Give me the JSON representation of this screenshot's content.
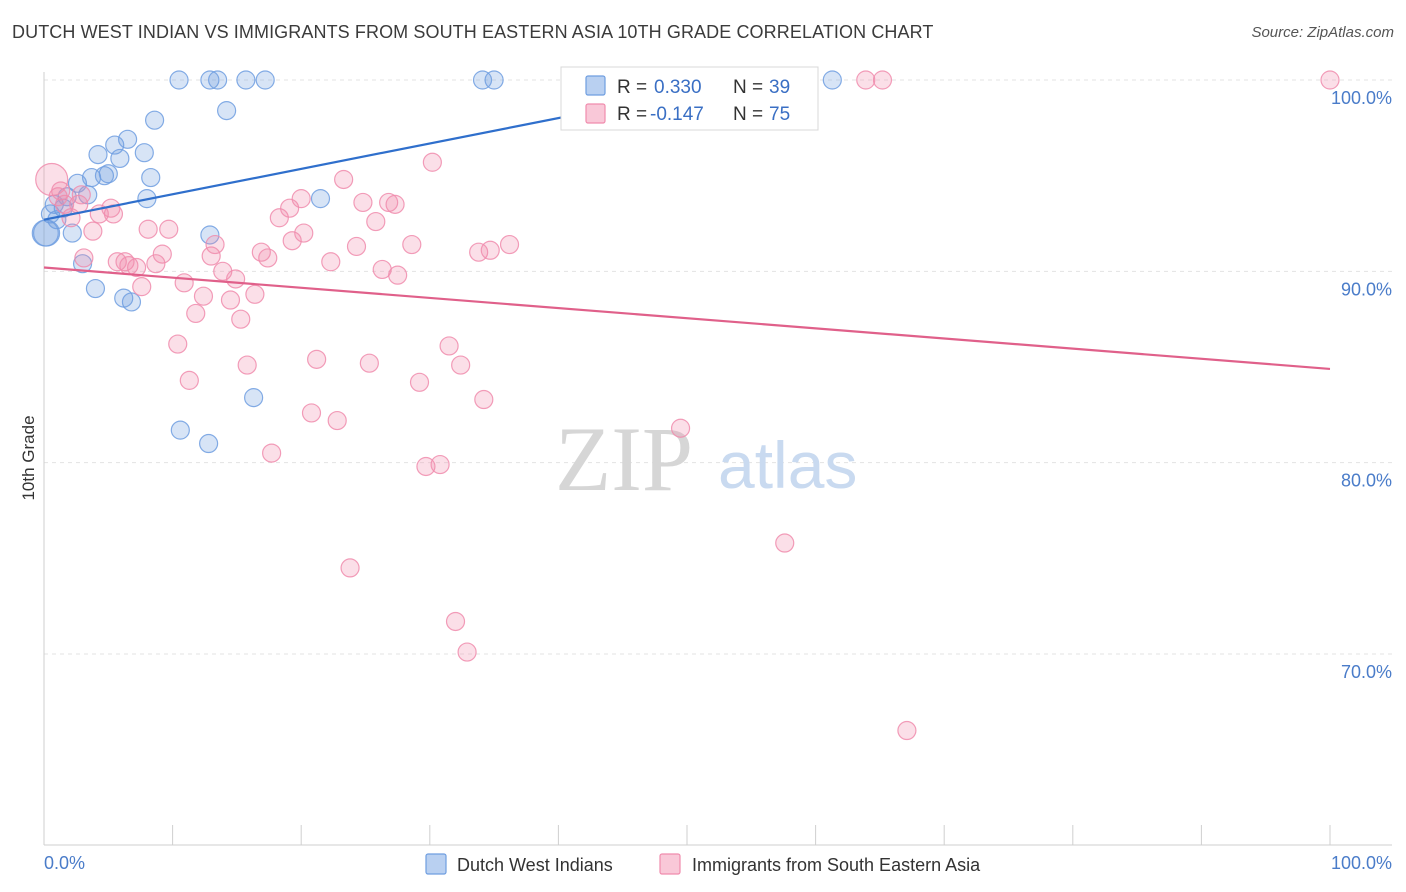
{
  "title": "DUTCH WEST INDIAN VS IMMIGRANTS FROM SOUTH EASTERN ASIA 10TH GRADE CORRELATION CHART",
  "source": "Source: ZipAtlas.com",
  "watermark": {
    "zip": "ZIP",
    "atlas": "atlas"
  },
  "chart_data": {
    "type": "scatter",
    "xlabel": "",
    "ylabel": "10th Grade",
    "xlim": [
      0,
      100
    ],
    "ylim": [
      61,
      102
    ],
    "x_tick_labels": [
      "0.0%",
      "100.0%"
    ],
    "y_ticks": [
      {
        "value": 100,
        "label": "100.0%"
      },
      {
        "value": 90,
        "label": "90.0%"
      },
      {
        "value": 80,
        "label": "80.0%"
      },
      {
        "value": 70,
        "label": "70.0%"
      }
    ],
    "grid": true,
    "legend_position": "top-center",
    "series": [
      {
        "name": "Dutch West Indians",
        "color": "#6f9ee0",
        "line_color": "#2f6fcc",
        "stats": {
          "r_label": "R =",
          "r": "0.330",
          "n_label": "N =",
          "n": "39"
        },
        "trend": {
          "x0": 0,
          "y0": 92.7,
          "x1": 55,
          "y1": 100
        },
        "points": [
          [
            0.2,
            92.0
          ],
          [
            0.5,
            93.0
          ],
          [
            0.8,
            93.5
          ],
          [
            1.0,
            92.7
          ],
          [
            1.5,
            93.3
          ],
          [
            1.8,
            93.9
          ],
          [
            2.2,
            92.0
          ],
          [
            2.6,
            94.6
          ],
          [
            3.0,
            90.4
          ],
          [
            3.4,
            94.0
          ],
          [
            3.7,
            94.9
          ],
          [
            4.0,
            89.1
          ],
          [
            4.2,
            96.1
          ],
          [
            4.7,
            95.0
          ],
          [
            5.0,
            95.1
          ],
          [
            5.5,
            96.6
          ],
          [
            5.9,
            95.9
          ],
          [
            6.2,
            88.6
          ],
          [
            6.5,
            96.9
          ],
          [
            6.8,
            88.4
          ],
          [
            7.8,
            96.2
          ],
          [
            8.0,
            93.8
          ],
          [
            8.3,
            94.9
          ],
          [
            8.6,
            97.9
          ],
          [
            10.5,
            100.0
          ],
          [
            10.6,
            81.7
          ],
          [
            12.8,
            81.0
          ],
          [
            12.9,
            91.9
          ],
          [
            12.9,
            100.0
          ],
          [
            13.5,
            100.0
          ],
          [
            14.2,
            98.4
          ],
          [
            15.7,
            100.0
          ],
          [
            16.3,
            83.4
          ],
          [
            17.2,
            100.0
          ],
          [
            21.5,
            93.8
          ],
          [
            34.1,
            100.0
          ],
          [
            35.0,
            100.0
          ],
          [
            61.3,
            100.0
          ],
          [
            0.1,
            92.0
          ]
        ]
      },
      {
        "name": "Immigrants from South Eastern Asia",
        "color": "#f08cad",
        "line_color": "#e0608a",
        "stats": {
          "r_label": "R =",
          "r": "-0.147",
          "n_label": "N =",
          "n": "75"
        },
        "trend": {
          "x0": 0,
          "y0": 90.2,
          "x1": 100,
          "y1": 84.9
        },
        "points": [
          [
            0.6,
            94.8
          ],
          [
            1.1,
            93.9
          ],
          [
            1.6,
            93.5
          ],
          [
            2.1,
            92.8
          ],
          [
            2.7,
            93.5
          ],
          [
            3.1,
            90.7
          ],
          [
            3.8,
            92.1
          ],
          [
            4.3,
            93.0
          ],
          [
            5.2,
            93.3
          ],
          [
            5.4,
            93.0
          ],
          [
            5.7,
            90.5
          ],
          [
            6.3,
            90.5
          ],
          [
            6.6,
            90.3
          ],
          [
            7.2,
            90.2
          ],
          [
            7.6,
            89.2
          ],
          [
            8.1,
            92.2
          ],
          [
            8.7,
            90.4
          ],
          [
            9.2,
            90.9
          ],
          [
            9.7,
            92.2
          ],
          [
            10.4,
            86.2
          ],
          [
            10.9,
            89.4
          ],
          [
            11.3,
            84.3
          ],
          [
            11.8,
            87.8
          ],
          [
            12.4,
            88.7
          ],
          [
            13.0,
            90.8
          ],
          [
            13.3,
            91.4
          ],
          [
            13.9,
            90.0
          ],
          [
            14.5,
            88.5
          ],
          [
            14.9,
            89.6
          ],
          [
            15.3,
            87.5
          ],
          [
            15.8,
            85.1
          ],
          [
            16.4,
            88.8
          ],
          [
            16.9,
            91.0
          ],
          [
            17.4,
            90.7
          ],
          [
            17.7,
            80.5
          ],
          [
            18.3,
            92.8
          ],
          [
            19.1,
            93.3
          ],
          [
            19.3,
            91.6
          ],
          [
            20.0,
            93.8
          ],
          [
            20.2,
            92.0
          ],
          [
            20.8,
            82.6
          ],
          [
            21.2,
            85.4
          ],
          [
            22.3,
            90.5
          ],
          [
            22.8,
            82.2
          ],
          [
            23.3,
            94.8
          ],
          [
            23.8,
            74.5
          ],
          [
            24.3,
            91.3
          ],
          [
            24.8,
            93.6
          ],
          [
            25.3,
            85.2
          ],
          [
            25.8,
            92.6
          ],
          [
            26.3,
            90.1
          ],
          [
            26.8,
            93.6
          ],
          [
            27.3,
            93.5
          ],
          [
            27.5,
            89.8
          ],
          [
            28.6,
            91.4
          ],
          [
            29.2,
            84.2
          ],
          [
            29.7,
            79.8
          ],
          [
            30.2,
            95.7
          ],
          [
            30.8,
            79.9
          ],
          [
            31.5,
            86.1
          ],
          [
            32.0,
            71.7
          ],
          [
            32.4,
            85.1
          ],
          [
            32.9,
            70.1
          ],
          [
            33.8,
            91.0
          ],
          [
            34.2,
            83.3
          ],
          [
            34.7,
            91.1
          ],
          [
            36.2,
            91.4
          ],
          [
            49.5,
            81.8
          ],
          [
            57.6,
            75.8
          ],
          [
            63.9,
            100.0
          ],
          [
            65.2,
            100.0
          ],
          [
            67.1,
            66.0
          ],
          [
            100.0,
            100.0
          ],
          [
            2.9,
            94.0
          ],
          [
            1.3,
            94.2
          ]
        ]
      }
    ]
  }
}
